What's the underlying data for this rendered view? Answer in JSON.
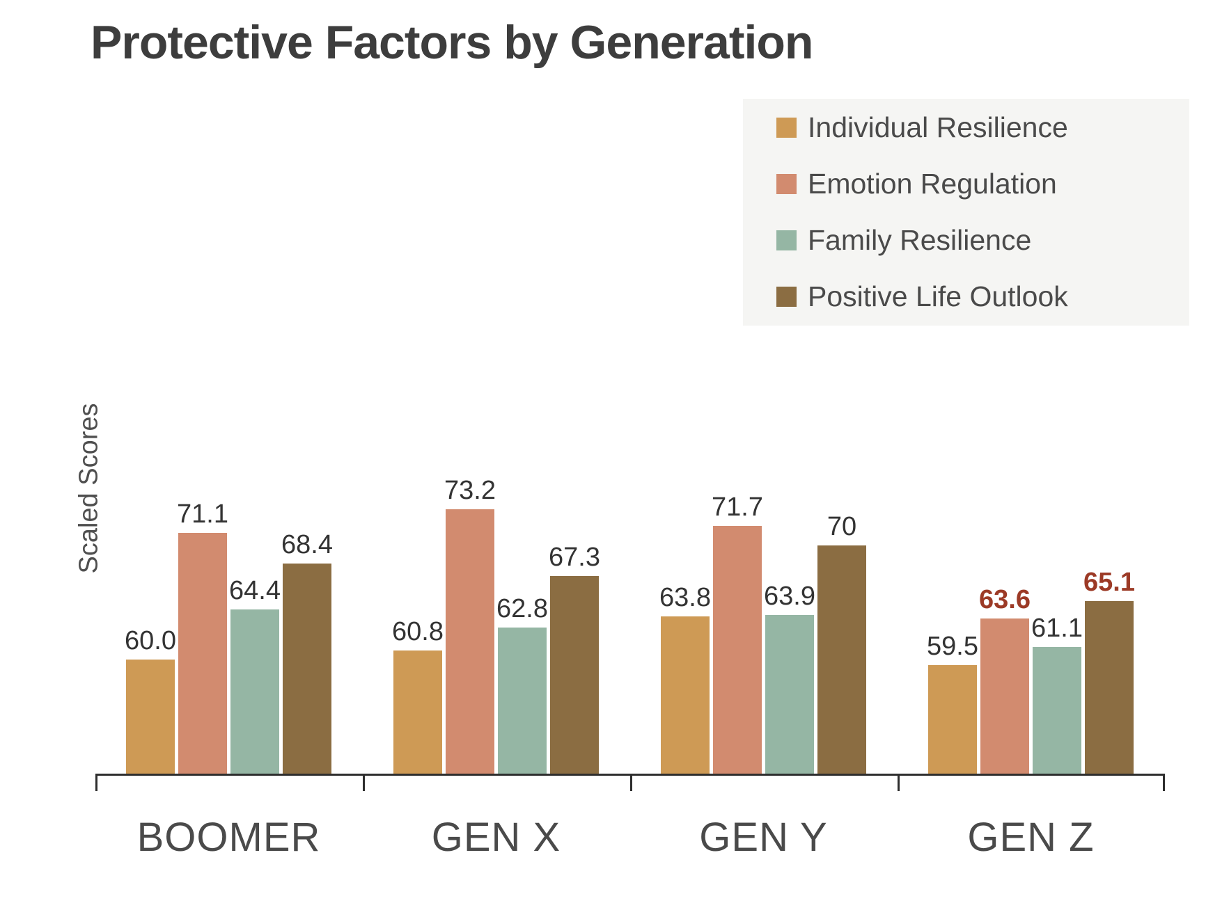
{
  "page": {
    "background": "#FFFFFF"
  },
  "title": {
    "color": "#3D3D3D"
  },
  "legend": {
    "position": "top-right",
    "background": "#F5F5F3",
    "text_color": "#4A4A4A"
  },
  "styles": {
    "axis_color": "#2E2E2E",
    "category_label_color": "#4A4A4A",
    "value_label_color": "#333333",
    "highlight_color": "#9C3A26",
    "ylabel_color": "#4F4F4F"
  },
  "chart_data": {
    "type": "bar",
    "title": "Protective Factors by Generation",
    "ylabel": "Scaled Scores",
    "xlabel": "",
    "categories": [
      "BOOMER",
      "GEN X",
      "GEN Y",
      "GEN Z"
    ],
    "series": [
      {
        "name": "Individual Resilience",
        "color": "#CE9A55",
        "values": [
          60.0,
          60.8,
          63.8,
          59.5
        ],
        "labels": [
          "60.0",
          "60.8",
          "63.8",
          "59.5"
        ]
      },
      {
        "name": "Emotion Regulation",
        "color": "#D28B6F",
        "values": [
          71.1,
          73.2,
          71.7,
          63.6
        ],
        "labels": [
          "71.1",
          "73.2",
          "71.7",
          "63.6"
        ]
      },
      {
        "name": "Family Resilience",
        "color": "#95B6A4",
        "values": [
          64.4,
          62.8,
          63.9,
          61.1
        ],
        "labels": [
          "64.4",
          "62.8",
          "63.9",
          "61.1"
        ]
      },
      {
        "name": "Positive Life Outlook",
        "color": "#8B6D42",
        "values": [
          68.4,
          67.3,
          70,
          65.1
        ],
        "labels": [
          "68.4",
          "67.3",
          "70",
          "65.1"
        ]
      }
    ],
    "highlighted_labels": [
      {
        "series": 1,
        "category": 3
      },
      {
        "series": 3,
        "category": 3
      }
    ],
    "value_labels_shown": true,
    "ylim": [
      50,
      80
    ],
    "y_axis_line_visible": false,
    "x_axis_line_visible": true,
    "grid": false,
    "legend_entries": [
      "Individual Resilience",
      "Emotion Regulation",
      "Family Resilience",
      "Positive Life Outlook"
    ]
  }
}
